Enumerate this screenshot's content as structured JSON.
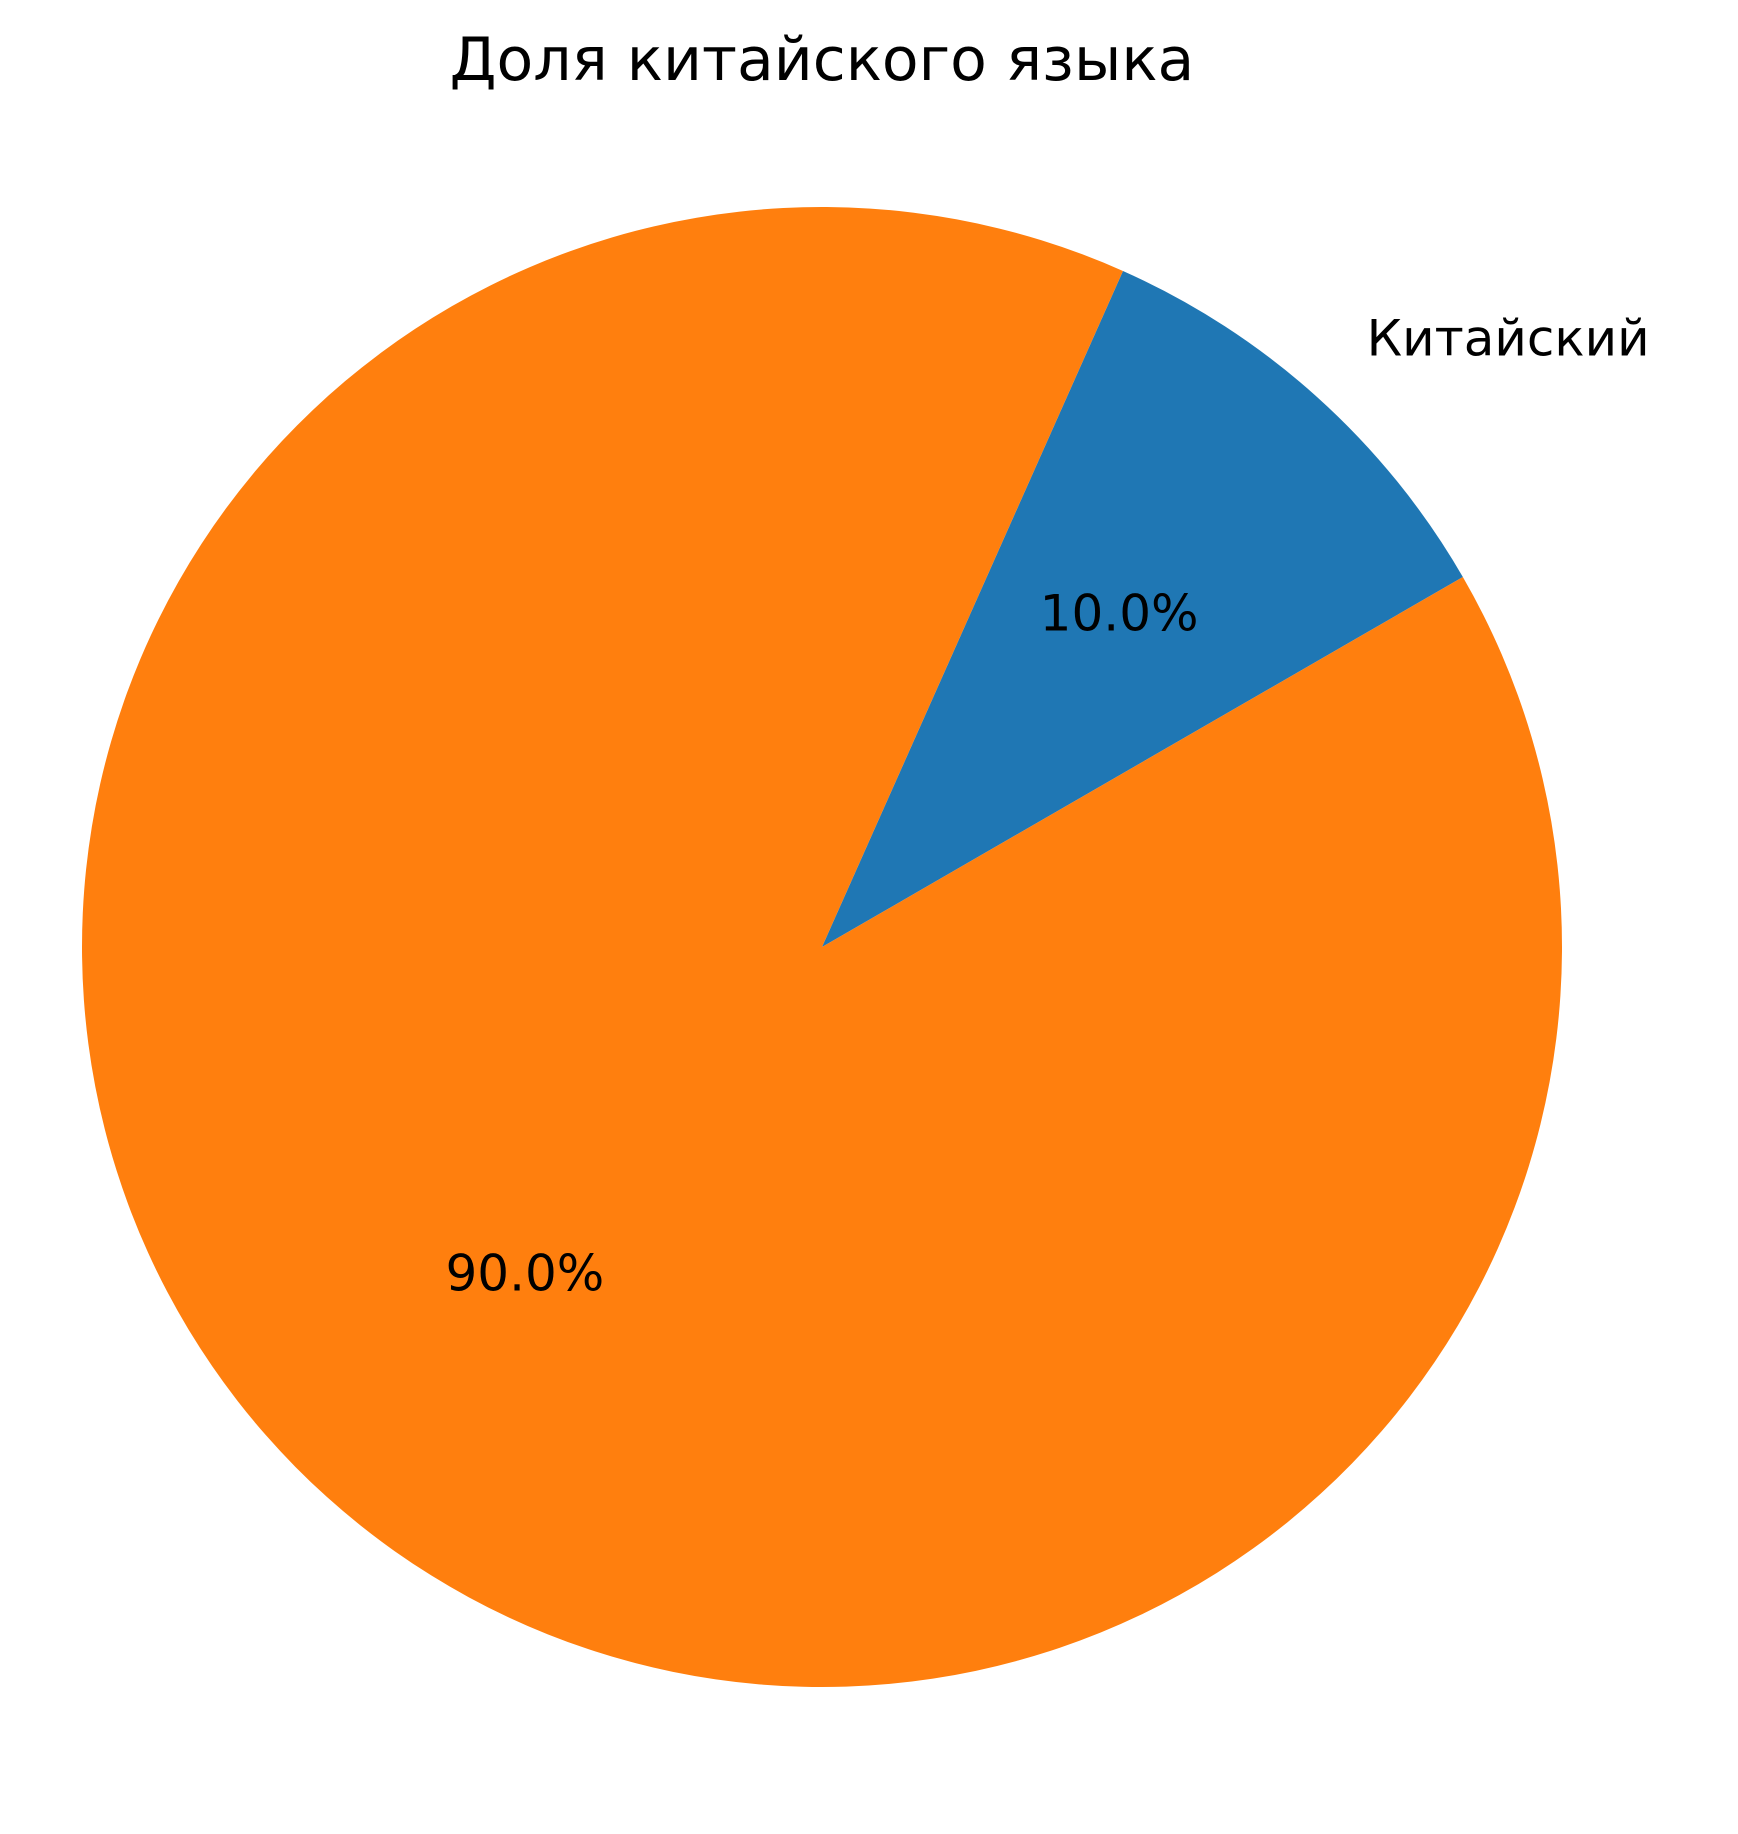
{
  "chart_data": {
    "type": "pie",
    "title": "Доля китайского языка",
    "slices": [
      {
        "label": "Китайский",
        "value": 10.0,
        "pct_label": "10.0%",
        "color": "#1f77b4"
      },
      {
        "label": "",
        "value": 90.0,
        "pct_label": "90.0%",
        "color": "#ff7f0e"
      }
    ],
    "start_angle_deg": 30,
    "direction": "counterclockwise"
  }
}
